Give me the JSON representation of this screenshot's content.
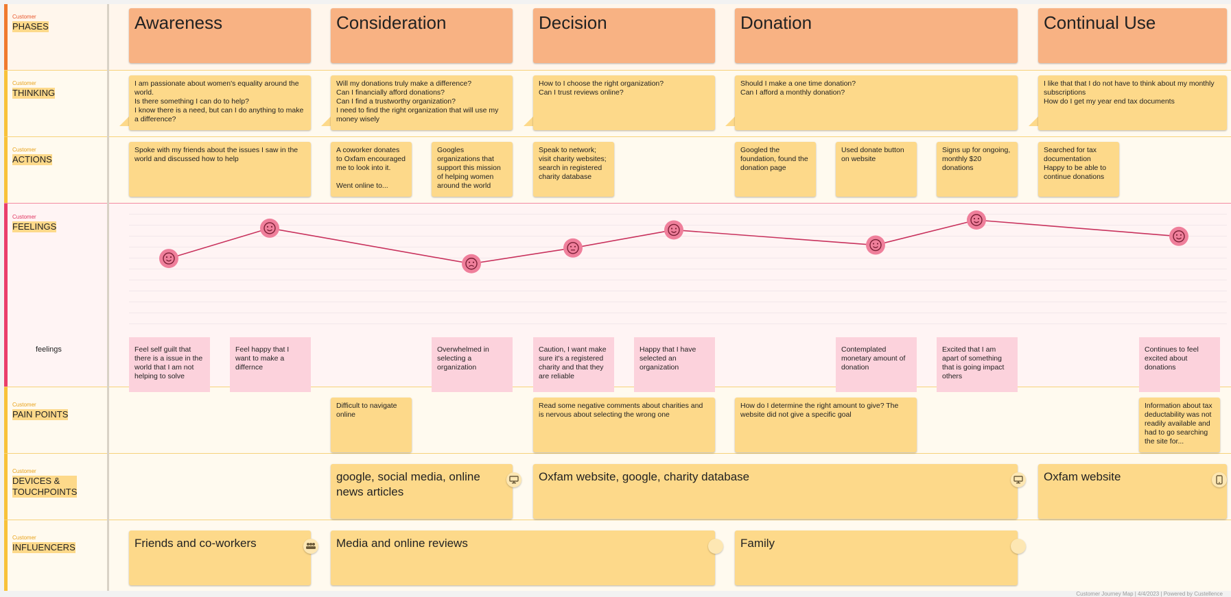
{
  "rows": {
    "phases": {
      "small": "Customer",
      "label": "PHASES"
    },
    "thinking": {
      "small": "Customer",
      "label": "THINKING"
    },
    "actions": {
      "small": "Customer",
      "label": "ACTIONS"
    },
    "feelings": {
      "small": "Customer",
      "label": "FEELINGS",
      "sublabel": "feelings"
    },
    "pain_points": {
      "small": "Customer",
      "label": "PAIN POINTS"
    },
    "devices": {
      "small": "Customer",
      "label": "DEVICES &\nTOUCHPOINTS"
    },
    "influencers": {
      "small": "Customer",
      "label": "INFLUENCERS"
    }
  },
  "phases": [
    "Awareness",
    "Consideration",
    "Decision",
    "Donation",
    "Continual Use"
  ],
  "thinking": [
    "I am passionate about women's equality around the world.\nIs there something I can do to help?\nI know there is a need, but can I do anything to make a difference?",
    "Will my donations truly make a difference?\nCan I financially afford donations?\nCan I find a trustworthy organization?\nI need to find the right organization that will use my money wisely",
    "How to I choose the right organization?\nCan I trust reviews online?",
    "Should I make a one time donation?\nCan I afford a monthly donation?",
    "I like that that I do not have to think about my monthly subscriptions\nHow do I get my year end tax documents"
  ],
  "actions": [
    "Spoke with my friends about the issues I saw in the world and discussed how to help",
    "A coworker donates to Oxfam encouraged me to look into it.\n\nWent online to...",
    "Googles organizations that support this mission of helping women around the world",
    "Speak to network;\nvisit charity websites;\nsearch in registered charity database",
    "Googled the foundation, found the donation page",
    "Used donate button on website",
    "Signs up for ongoing, monthly $20 donations",
    "Searched for tax documentation\nHappy to be able to continue donations"
  ],
  "feelings": [
    "Feel self guilt that there is a issue in the world that I am not helping to solve",
    "Feel happy that I want to make a differnce",
    "Overwhelmed in selecting a organization",
    "Caution, I want make sure it's a registered charity and that they are reliable",
    "Happy that I have selected an organization",
    "Contemplated monetary amount of donation",
    "Excited that I am apart of something that is going impact others",
    "Continues to feel excited about donations"
  ],
  "pain_points": [
    "Difficult to navigate online",
    "Read some negative comments about charities and is nervous about selecting the wrong one",
    "How do I determine the right amount to give? The website did not give a specific goal",
    "Information about tax deductability was not readily available and had to go searching the site for..."
  ],
  "devices": [
    {
      "text": "google, social media, online news articles",
      "icon": "desktop-icon"
    },
    {
      "text": "Oxfam website, google, charity database",
      "icon": "desktop-icon"
    },
    {
      "text": "Oxfam website",
      "icon": "mobile-icon"
    }
  ],
  "influencers": [
    {
      "text": "Friends and co-workers",
      "icon": "group-icon"
    },
    {
      "text": "Media and online reviews",
      "icon": "badge-icon"
    },
    {
      "text": "Family",
      "icon": "badge-icon"
    }
  ],
  "emotion_curve": [
    {
      "mood": "tearful",
      "level": 0.34
    },
    {
      "mood": "happy",
      "level": 0.86
    },
    {
      "mood": "sad",
      "level": 0.25
    },
    {
      "mood": "neutral",
      "level": 0.52
    },
    {
      "mood": "happy",
      "level": 0.83
    },
    {
      "mood": "wink",
      "level": 0.57
    },
    {
      "mood": "happy",
      "level": 1.0
    },
    {
      "mood": "happy",
      "level": 0.72
    }
  ],
  "colors": {
    "phase_card": "#f8b283",
    "sticky": "#fdd98a",
    "feeling_card": "#fcd2dc",
    "curve": "#c8315c",
    "curve_marker": "#ef7f9b",
    "phase_bar": "#f07a2f",
    "yellow_bar": "#f8c23a",
    "feelings_bar": "#ea3e6b"
  },
  "footer": "Customer Journey Map | 4/4/2023 | Powered by Custellence"
}
